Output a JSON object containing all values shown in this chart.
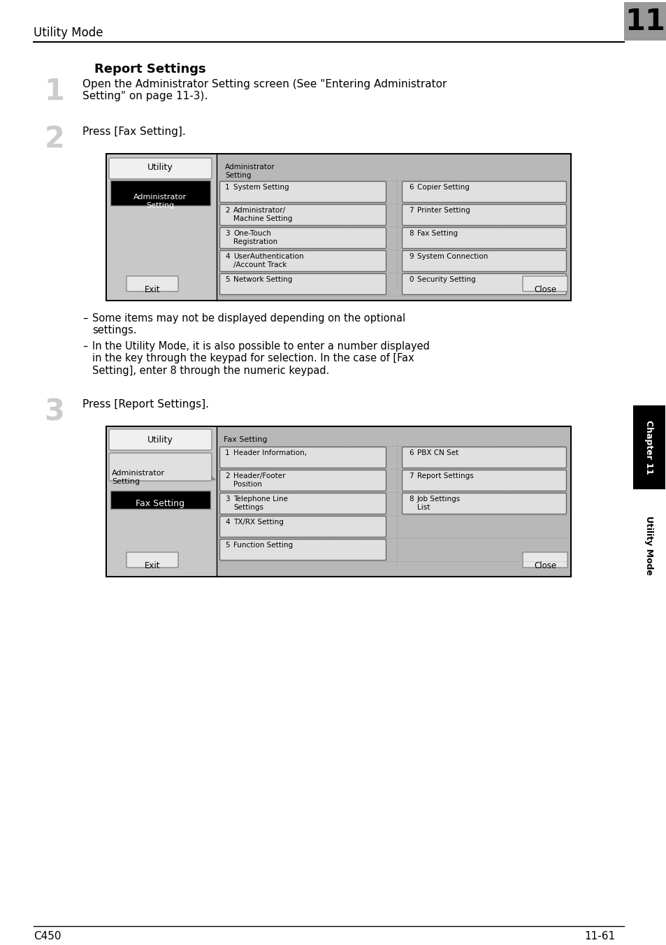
{
  "page_title": "Utility Mode",
  "chapter_num": "11",
  "section_title": "Report Settings",
  "step1_num": "1",
  "step1_text": "Open the Administrator Setting screen (See \"Entering Administrator\nSetting\" on page 11-3).",
  "step2_num": "2",
  "step2_text": "Press [Fax Setting].",
  "step3_num": "3",
  "step3_text": "Press [Report Settings].",
  "bullet1": "Some items may not be displayed depending on the optional\nsettings.",
  "bullet2": "In the Utility Mode, it is also possible to enter a number displayed\nin the key through the keypad for selection. In the case of [Fax\nSetting], enter 8 through the numeric keypad.",
  "footer_left": "C450",
  "footer_right": "11-61",
  "sidebar_text": "Utility Mode",
  "sidebar_chapter": "Chapter 11",
  "bg_color": "#ffffff",
  "chapter_box_color": "#999999",
  "screen_bg": "#b8b8b8",
  "button_bg": "#e0e0e0",
  "left_panel_bg": "#c8c8c8",
  "selected_bg": "#000000",
  "sidebar_chapter_bg": "#000000",
  "sidebar_bg": "#d0d0d0"
}
